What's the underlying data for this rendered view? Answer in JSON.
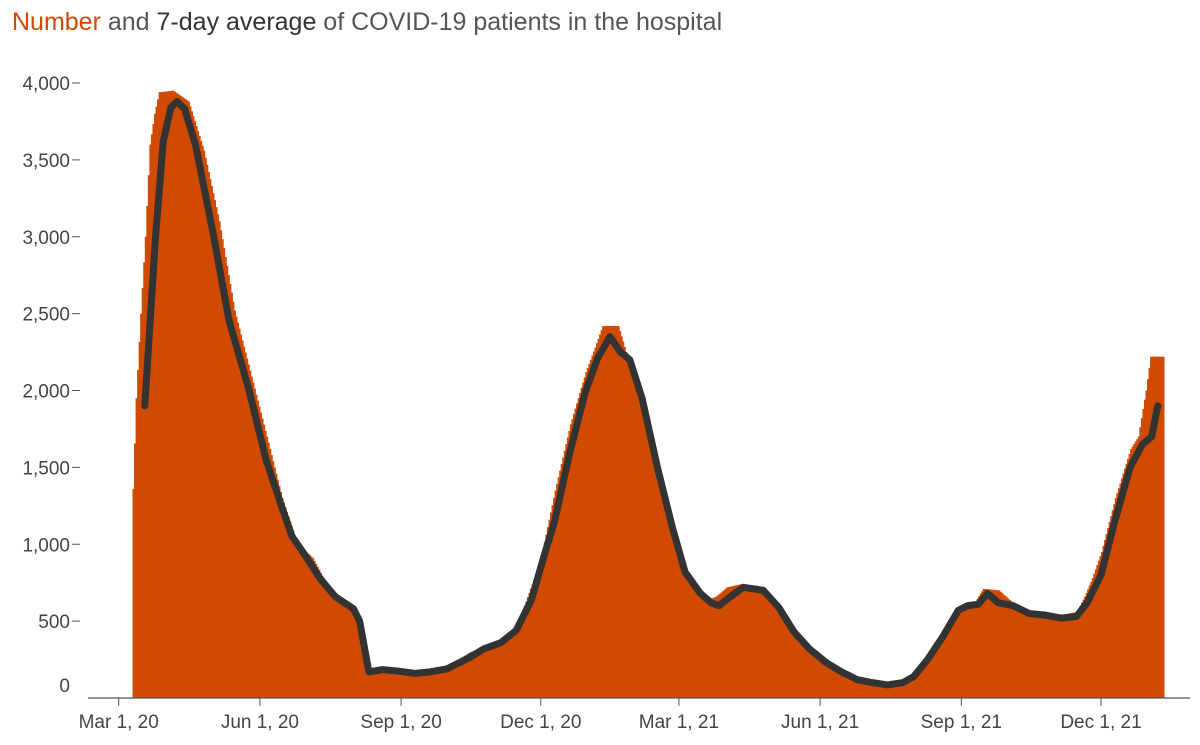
{
  "title": {
    "part_number": "Number",
    "part_and": " and ",
    "part_avg": "7-day average",
    "part_rest": " of COVID-19 patients in the hospital"
  },
  "colors": {
    "bar": "#d04a02",
    "line": "#333333",
    "axis": "#555555",
    "text": "#444444"
  },
  "chart_data": {
    "type": "area",
    "title": "Number and 7-day average of COVID-19 patients in the hospital",
    "xlabel": "",
    "ylabel": "",
    "ylim": [
      0,
      4000
    ],
    "xlim": [
      "2020-02-10",
      "2022-01-28"
    ],
    "grid": false,
    "y_ticks": [
      {
        "value": 0,
        "label": "0"
      },
      {
        "value": 500,
        "label": "500"
      },
      {
        "value": 1000,
        "label": "1,000"
      },
      {
        "value": 1500,
        "label": "1,500"
      },
      {
        "value": 2000,
        "label": "2,000"
      },
      {
        "value": 2500,
        "label": "2,500"
      },
      {
        "value": 3000,
        "label": "3,000"
      },
      {
        "value": 3500,
        "label": "3,500"
      },
      {
        "value": 4000,
        "label": "4,000"
      }
    ],
    "x_ticks": [
      {
        "date": "2020-03-01",
        "label": "Mar 1, 20"
      },
      {
        "date": "2020-06-01",
        "label": "Jun 1, 20"
      },
      {
        "date": "2020-09-01",
        "label": "Sep 1, 20"
      },
      {
        "date": "2020-12-01",
        "label": "Dec 1, 20"
      },
      {
        "date": "2021-03-01",
        "label": "Mar 1, 21"
      },
      {
        "date": "2021-06-01",
        "label": "Jun 1, 21"
      },
      {
        "date": "2021-09-01",
        "label": "Sep 1, 21"
      },
      {
        "date": "2021-12-01",
        "label": "Dec 1, 21"
      }
    ],
    "series": [
      {
        "name": "Number",
        "style": "bars",
        "points": [
          [
            "2020-03-10",
            1360
          ],
          [
            "2020-03-12",
            1950
          ],
          [
            "2020-03-15",
            2500
          ],
          [
            "2020-03-18",
            3000
          ],
          [
            "2020-03-21",
            3600
          ],
          [
            "2020-03-24",
            3800
          ],
          [
            "2020-03-27",
            3940
          ],
          [
            "2020-04-05",
            3950
          ],
          [
            "2020-04-15",
            3880
          ],
          [
            "2020-04-25",
            3560
          ],
          [
            "2020-05-05",
            3100
          ],
          [
            "2020-05-15",
            2520
          ],
          [
            "2020-05-25",
            2130
          ],
          [
            "2020-06-05",
            1700
          ],
          [
            "2020-06-15",
            1300
          ],
          [
            "2020-06-25",
            1000
          ],
          [
            "2020-07-05",
            910
          ],
          [
            "2020-07-15",
            720
          ],
          [
            "2020-07-25",
            630
          ],
          [
            "2020-08-05",
            520
          ],
          [
            "2020-08-10",
            170
          ],
          [
            "2020-08-20",
            190
          ],
          [
            "2020-08-30",
            175
          ],
          [
            "2020-09-10",
            165
          ],
          [
            "2020-09-25",
            175
          ],
          [
            "2020-10-05",
            230
          ],
          [
            "2020-10-15",
            295
          ],
          [
            "2020-10-25",
            330
          ],
          [
            "2020-11-05",
            370
          ],
          [
            "2020-11-15",
            460
          ],
          [
            "2020-11-25",
            740
          ],
          [
            "2020-12-01",
            920
          ],
          [
            "2020-12-10",
            1350
          ],
          [
            "2020-12-20",
            1780
          ],
          [
            "2020-12-30",
            2120
          ],
          [
            "2021-01-05",
            2280
          ],
          [
            "2021-01-10",
            2420
          ],
          [
            "2021-01-20",
            2420
          ],
          [
            "2021-01-25",
            2250
          ],
          [
            "2021-02-01",
            2100
          ],
          [
            "2021-02-10",
            1700
          ],
          [
            "2021-02-20",
            1250
          ],
          [
            "2021-03-01",
            890
          ],
          [
            "2021-03-10",
            720
          ],
          [
            "2021-03-20",
            640
          ],
          [
            "2021-03-25",
            660
          ],
          [
            "2021-04-01",
            720
          ],
          [
            "2021-04-10",
            740
          ],
          [
            "2021-04-20",
            730
          ],
          [
            "2021-04-30",
            620
          ],
          [
            "2021-05-10",
            470
          ],
          [
            "2021-05-20",
            350
          ],
          [
            "2021-06-01",
            250
          ],
          [
            "2021-06-10",
            200
          ],
          [
            "2021-06-20",
            130
          ],
          [
            "2021-07-01",
            100
          ],
          [
            "2021-07-10",
            90
          ],
          [
            "2021-07-20",
            100
          ],
          [
            "2021-07-30",
            150
          ],
          [
            "2021-08-10",
            280
          ],
          [
            "2021-08-20",
            430
          ],
          [
            "2021-08-30",
            590
          ],
          [
            "2021-09-05",
            600
          ],
          [
            "2021-09-10",
            630
          ],
          [
            "2021-09-15",
            710
          ],
          [
            "2021-09-25",
            700
          ],
          [
            "2021-10-05",
            610
          ],
          [
            "2021-10-15",
            570
          ],
          [
            "2021-10-25",
            560
          ],
          [
            "2021-11-05",
            540
          ],
          [
            "2021-11-15",
            560
          ],
          [
            "2021-11-20",
            660
          ],
          [
            "2021-11-25",
            780
          ],
          [
            "2021-12-01",
            950
          ],
          [
            "2021-12-10",
            1300
          ],
          [
            "2021-12-20",
            1620
          ],
          [
            "2021-12-25",
            1700
          ],
          [
            "2021-12-30",
            2000
          ],
          [
            "2022-01-02",
            2220
          ],
          [
            "2022-01-05",
            2220
          ],
          [
            "2022-01-10",
            2220
          ]
        ]
      },
      {
        "name": "7-day average",
        "style": "line",
        "points": [
          [
            "2020-03-18",
            1900
          ],
          [
            "2020-03-25",
            3000
          ],
          [
            "2020-03-30",
            3620
          ],
          [
            "2020-04-04",
            3840
          ],
          [
            "2020-04-08",
            3880
          ],
          [
            "2020-04-13",
            3830
          ],
          [
            "2020-04-20",
            3600
          ],
          [
            "2020-05-01",
            3050
          ],
          [
            "2020-05-12",
            2450
          ],
          [
            "2020-05-25",
            2000
          ],
          [
            "2020-06-05",
            1550
          ],
          [
            "2020-06-15",
            1250
          ],
          [
            "2020-06-22",
            1050
          ],
          [
            "2020-07-01",
            920
          ],
          [
            "2020-07-10",
            780
          ],
          [
            "2020-07-20",
            660
          ],
          [
            "2020-08-01",
            580
          ],
          [
            "2020-08-05",
            500
          ],
          [
            "2020-08-11",
            170
          ],
          [
            "2020-08-20",
            185
          ],
          [
            "2020-08-30",
            175
          ],
          [
            "2020-09-10",
            160
          ],
          [
            "2020-09-20",
            170
          ],
          [
            "2020-10-01",
            190
          ],
          [
            "2020-10-15",
            260
          ],
          [
            "2020-10-25",
            320
          ],
          [
            "2020-11-05",
            360
          ],
          [
            "2020-11-15",
            440
          ],
          [
            "2020-11-25",
            640
          ],
          [
            "2020-12-03",
            920
          ],
          [
            "2020-12-10",
            1150
          ],
          [
            "2020-12-20",
            1600
          ],
          [
            "2020-12-30",
            1990
          ],
          [
            "2021-01-07",
            2210
          ],
          [
            "2021-01-15",
            2350
          ],
          [
            "2021-01-22",
            2250
          ],
          [
            "2021-01-28",
            2200
          ],
          [
            "2021-02-05",
            1950
          ],
          [
            "2021-02-15",
            1500
          ],
          [
            "2021-02-25",
            1100
          ],
          [
            "2021-03-05",
            820
          ],
          [
            "2021-03-15",
            680
          ],
          [
            "2021-03-22",
            620
          ],
          [
            "2021-03-27",
            600
          ],
          [
            "2021-04-05",
            670
          ],
          [
            "2021-04-12",
            720
          ],
          [
            "2021-04-25",
            700
          ],
          [
            "2021-05-05",
            590
          ],
          [
            "2021-05-15",
            430
          ],
          [
            "2021-05-25",
            320
          ],
          [
            "2021-06-05",
            230
          ],
          [
            "2021-06-15",
            170
          ],
          [
            "2021-06-25",
            120
          ],
          [
            "2021-07-05",
            100
          ],
          [
            "2021-07-15",
            85
          ],
          [
            "2021-07-25",
            100
          ],
          [
            "2021-08-01",
            140
          ],
          [
            "2021-08-10",
            250
          ],
          [
            "2021-08-20",
            400
          ],
          [
            "2021-08-30",
            570
          ],
          [
            "2021-09-05",
            600
          ],
          [
            "2021-09-12",
            610
          ],
          [
            "2021-09-18",
            680
          ],
          [
            "2021-09-25",
            620
          ],
          [
            "2021-10-05",
            600
          ],
          [
            "2021-10-15",
            550
          ],
          [
            "2021-10-25",
            540
          ],
          [
            "2021-11-05",
            520
          ],
          [
            "2021-11-15",
            530
          ],
          [
            "2021-11-22",
            620
          ],
          [
            "2021-12-01",
            800
          ],
          [
            "2021-12-10",
            1150
          ],
          [
            "2021-12-20",
            1500
          ],
          [
            "2021-12-28",
            1650
          ],
          [
            "2022-01-03",
            1700
          ],
          [
            "2022-01-07",
            1900
          ]
        ]
      }
    ]
  }
}
